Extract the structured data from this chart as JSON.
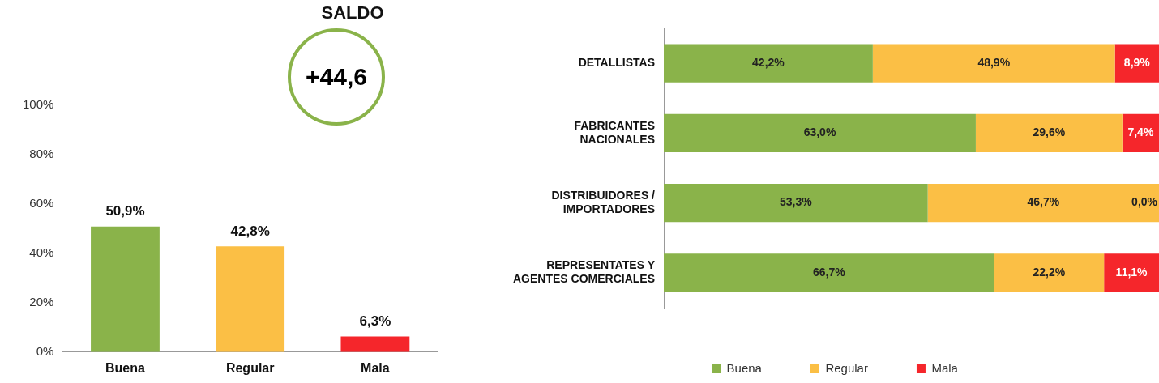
{
  "chart_data": [
    {
      "type": "bar",
      "title": "SALDO",
      "annotations": [
        "+44,6"
      ],
      "categories": [
        "Buena",
        "Regular",
        "Mala"
      ],
      "values": [
        50.9,
        42.8,
        6.3
      ],
      "colors": [
        "#8ab34a",
        "#fbbf45",
        "#f5262b"
      ],
      "value_labels": [
        "50,9%",
        "42,8%",
        "6,3%"
      ],
      "ylim": [
        0,
        100
      ],
      "yticks": [
        {
          "value": 0,
          "label": "0%"
        },
        {
          "value": 20,
          "label": "20%"
        },
        {
          "value": 40,
          "label": "40%"
        },
        {
          "value": 60,
          "label": "60%"
        },
        {
          "value": 80,
          "label": "80%"
        },
        {
          "value": 100,
          "label": "100%"
        }
      ],
      "grid": false,
      "legend": false
    },
    {
      "type": "bar",
      "orientation": "horizontal",
      "stacked": true,
      "categories": [
        "DETALLISTAS",
        "FABRICANTES NACIONALES",
        "DISTRIBUIDORES / IMPORTADORES",
        "REPRESENTATES Y AGENTES COMERCIALES"
      ],
      "series": [
        {
          "name": "Buena",
          "color": "#8ab34a",
          "values": [
            42.2,
            63.0,
            53.3,
            66.7
          ],
          "value_labels": [
            "42,2%",
            "63,0%",
            "53,3%",
            "66,7%"
          ]
        },
        {
          "name": "Regular",
          "color": "#fbbf45",
          "values": [
            48.9,
            29.6,
            46.7,
            22.2
          ],
          "value_labels": [
            "48,9%",
            "29,6%",
            "46,7%",
            "22,2%"
          ]
        },
        {
          "name": "Mala",
          "color": "#f5262b",
          "values": [
            8.9,
            7.4,
            0.0,
            11.1
          ],
          "value_labels": [
            "8,9%",
            "7,4%",
            "0,0%",
            "11,1%"
          ]
        }
      ],
      "xlim": [
        0,
        100
      ],
      "tick_labels": "y",
      "grid": false,
      "legend": "bottom"
    }
  ]
}
